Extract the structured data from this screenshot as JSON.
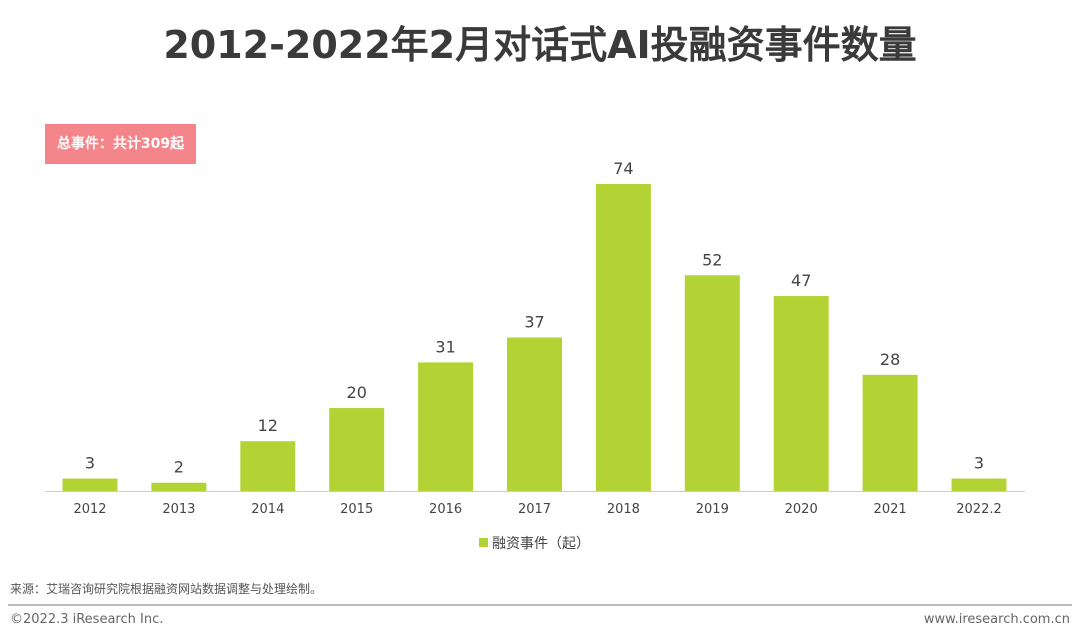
{
  "title": "2012-2022年2月对话式AI投融资事件数量",
  "badge": "总事件：共计309起",
  "chart_data": {
    "type": "bar",
    "title": "2012-2022年2月对话式AI投融资事件数量",
    "categories": [
      "2012",
      "2013",
      "2014",
      "2015",
      "2016",
      "2017",
      "2018",
      "2019",
      "2020",
      "2021",
      "2022.2"
    ],
    "series": [
      {
        "name": "融资事件（起）",
        "values": [
          3,
          2,
          12,
          20,
          31,
          37,
          74,
          52,
          47,
          28,
          3
        ],
        "color": "#b3d335"
      }
    ],
    "ylim": [
      0,
      74
    ],
    "grid": false,
    "data_labels": true,
    "legend": "bottom"
  },
  "footer": {
    "source": "来源：艾瑞咨询研究院根据融资网站数据调整与处理绘制。",
    "copyright": "©2022.3 iResearch Inc.",
    "website": "www.iresearch.com.cn"
  }
}
